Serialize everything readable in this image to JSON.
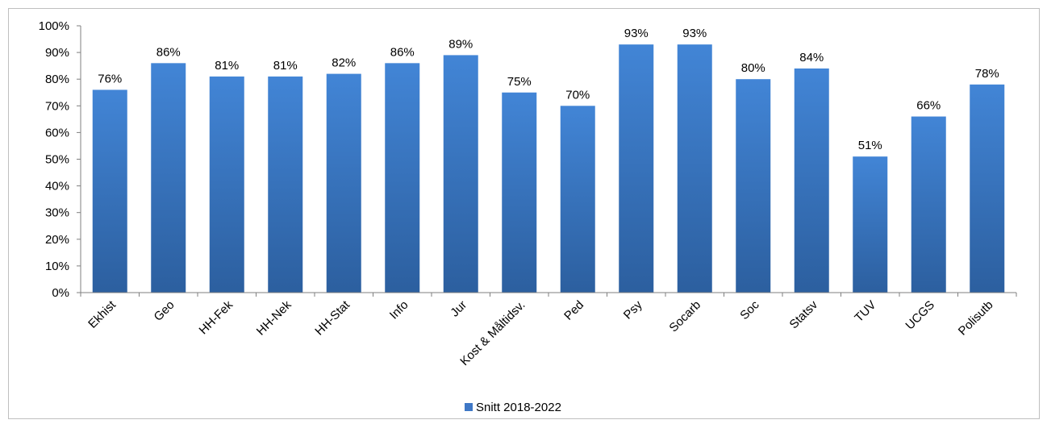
{
  "chart_data": {
    "type": "bar",
    "categories": [
      "Ekhist",
      "Geo",
      "HH-Fek",
      "HH-Nek",
      "HH-Stat",
      "Info",
      "Jur",
      "Kost & Måltidsv.",
      "Ped",
      "Psy",
      "Socarb",
      "Soc",
      "Statsv",
      "TUV",
      "UCGS",
      "Polisutb"
    ],
    "series": [
      {
        "name": "Snitt 2018-2022",
        "values": [
          76,
          86,
          81,
          81,
          82,
          86,
          89,
          75,
          70,
          93,
          93,
          80,
          84,
          51,
          66,
          78
        ],
        "value_labels": [
          "76%",
          "86%",
          "81%",
          "81%",
          "82%",
          "86%",
          "89%",
          "75%",
          "70%",
          "93%",
          "93%",
          "80%",
          "84%",
          "51%",
          "66%",
          "78%"
        ],
        "color": "#3f78c6"
      }
    ],
    "ylim": [
      0,
      100
    ],
    "yticks": [
      0,
      10,
      20,
      30,
      40,
      50,
      60,
      70,
      80,
      90,
      100
    ],
    "ytick_labels": [
      "0%",
      "10%",
      "20%",
      "30%",
      "40%",
      "50%",
      "60%",
      "70%",
      "80%",
      "90%",
      "100%"
    ],
    "grid": false,
    "legend_position": "bottom"
  }
}
